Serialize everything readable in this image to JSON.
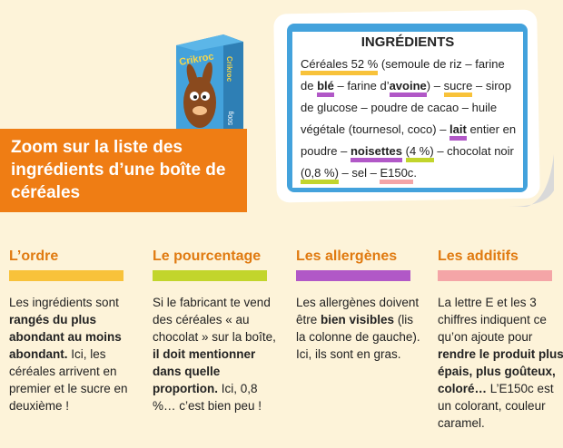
{
  "box": {
    "brand": "Crikroc",
    "weight": "500g"
  },
  "banner": {
    "title": "Zoom sur la liste des ingrédients d’une boîte de céréales"
  },
  "ingredients": {
    "title": "INGRÉDIENTS",
    "t1": "Céréales 52 %",
    "t2": " (semoule de riz – farine de ",
    "t3": "blé",
    "t4": " – farine d’",
    "t5": "avoine",
    "t6": ") – ",
    "t7": "sucre",
    "t8": " – sirop de glucose – poudre de cacao – huile végétale (tournesol, coco) – ",
    "t9": "lait",
    "t10": " entier en poudre – ",
    "t11": "noisettes",
    "t12": " ",
    "t13": "(4 %)",
    "t14": " – chocolat noir ",
    "t15": "(0,8 %)",
    "t16": " – sel – ",
    "t17": "E150c",
    "t18": "."
  },
  "columns": [
    {
      "title": "L’ordre",
      "title_color": "#e07a10",
      "bar_color": "#f8c23a",
      "p1": "Les ingrédients sont ",
      "b1": "rangés du plus abondant au moins abondant.",
      "p2": " Ici, les céréales arrivent en premier et le sucre en deuxième !"
    },
    {
      "title": "Le pourcentage",
      "title_color": "#e07a10",
      "bar_color": "#c2d52c",
      "p1": "Si le fabricant te vend des céréales « au chocolat » sur la boîte, ",
      "b1": "il doit mentionner dans quelle proportion.",
      "p2": " Ici, 0,8 %… c’est bien peu !"
    },
    {
      "title": "Les allergènes",
      "title_color": "#e07a10",
      "bar_color": "#b158c7",
      "p1": "Les allergènes doivent être ",
      "b1": "bien visibles",
      "p2": " (lis la colonne de gauche). Ici, ils sont en gras."
    },
    {
      "title": "Les additifs",
      "title_color": "#e07a10",
      "bar_color": "#f4a5a7",
      "p1": "La lettre E et les 3 chiffres indiquent ce qu’on ajoute pour ",
      "b1": "rendre le produit plus épais, plus goûteux, coloré…",
      "p2": " L’E150c est un colorant, couleur caramel."
    }
  ]
}
